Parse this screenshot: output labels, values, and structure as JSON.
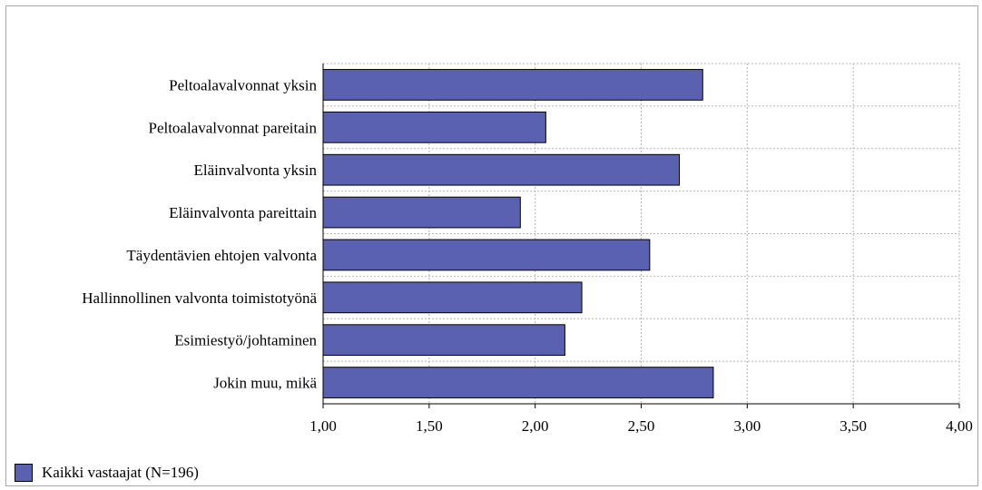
{
  "chart_data": {
    "type": "bar",
    "orientation": "horizontal",
    "categories": [
      "Peltoalavalvonnat yksin",
      "Peltoalavalvonnat pareitain",
      "Eläinvalvonta yksin",
      "Eläinvalvonta pareittain",
      "Täydentävien ehtojen valvonta",
      "Hallinnollinen valvonta toimistotyönä",
      "Esimiestyö/johtaminen",
      "Jokin muu, mikä"
    ],
    "series": [
      {
        "name": "Kaikki vastaajat (N=196)",
        "values": [
          2.79,
          2.05,
          2.68,
          1.93,
          2.54,
          2.22,
          2.14,
          2.84
        ]
      }
    ],
    "xlim": [
      1.0,
      4.0
    ],
    "xticks": [
      "1,00",
      "1,50",
      "2,00",
      "2,50",
      "3,00",
      "3,50",
      "4,00"
    ],
    "grid": true,
    "legend_position": "bottom-left",
    "title": "",
    "xlabel": "",
    "ylabel": ""
  },
  "colors": {
    "bar": "#5a61b0",
    "bar_border": "#000000",
    "grid": "#b4b4b4"
  }
}
